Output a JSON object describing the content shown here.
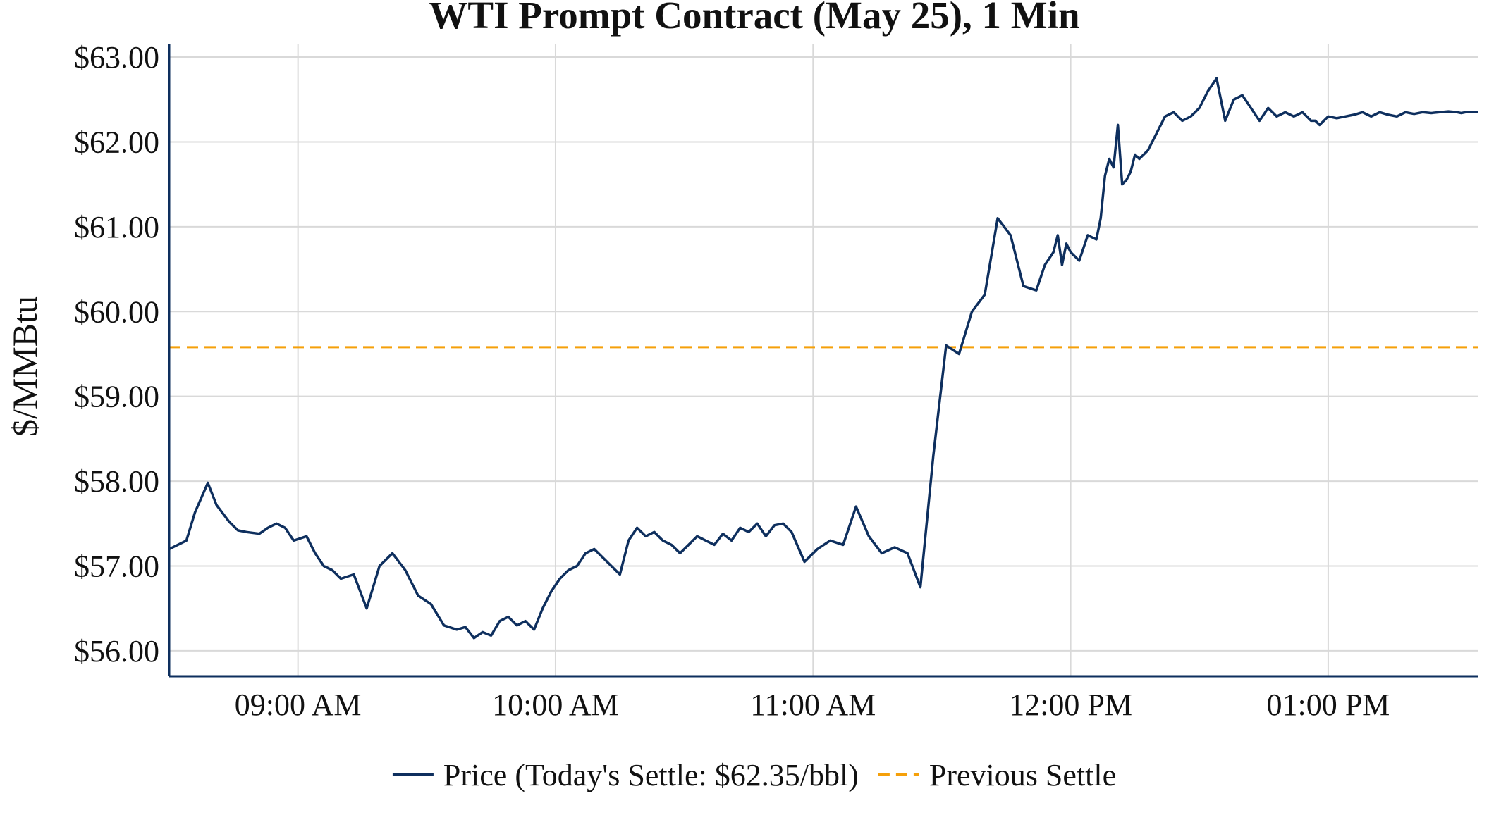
{
  "chart_data": {
    "type": "line",
    "title": "WTI Prompt Contract (May 25), 1 Min",
    "xlabel": "",
    "ylabel": "$/MMBtu",
    "ylim": [
      55.7,
      63.15
    ],
    "xlim_minutes_since_midnight": [
      510,
      815
    ],
    "y_ticks": [
      {
        "value": 56,
        "label": "$56.00"
      },
      {
        "value": 57,
        "label": "$57.00"
      },
      {
        "value": 58,
        "label": "$58.00"
      },
      {
        "value": 59,
        "label": "$59.00"
      },
      {
        "value": 60,
        "label": "$60.00"
      },
      {
        "value": 61,
        "label": "$61.00"
      },
      {
        "value": 62,
        "label": "$62.00"
      },
      {
        "value": 63,
        "label": "$63.00"
      }
    ],
    "x_ticks": [
      {
        "value": 540,
        "label": "09:00 AM"
      },
      {
        "value": 600,
        "label": "10:00 AM"
      },
      {
        "value": 660,
        "label": "11:00 AM"
      },
      {
        "value": 720,
        "label": "12:00 PM"
      },
      {
        "value": 780,
        "label": "01:00 PM"
      }
    ],
    "grid": true,
    "legend_position": "bottom-center",
    "series": [
      {
        "name": "Price (Today's Settle: $62.35/bbl)",
        "color": "#0e2f5e",
        "style": "solid",
        "x": [
          510,
          514,
          516,
          519,
          521,
          524,
          526,
          528,
          531,
          533,
          535,
          537,
          539,
          542,
          544,
          546,
          548,
          550,
          553,
          556,
          559,
          562,
          565,
          568,
          571,
          574,
          577,
          579,
          581,
          583,
          585,
          587,
          589,
          591,
          593,
          595,
          597,
          599,
          601,
          603,
          605,
          607,
          609,
          611,
          613,
          615,
          617,
          619,
          621,
          623,
          625,
          627,
          629,
          631,
          633,
          635,
          637,
          639,
          641,
          643,
          645,
          647,
          649,
          651,
          653,
          655,
          658,
          661,
          664,
          667,
          670,
          673,
          676,
          679,
          682,
          685,
          688,
          691,
          694,
          697,
          700,
          703,
          706,
          709,
          712,
          714,
          716,
          717,
          718,
          719,
          720,
          722,
          724,
          726,
          727,
          728,
          729,
          730,
          731,
          732,
          733,
          734,
          735,
          736,
          738,
          740,
          742,
          744,
          746,
          748,
          750,
          752,
          754,
          756,
          758,
          760,
          762,
          764,
          766,
          768,
          770,
          772,
          774,
          776,
          777,
          778,
          779,
          780,
          782,
          784,
          786,
          788,
          790,
          792,
          794,
          796,
          798,
          800,
          802,
          804,
          806,
          808,
          810,
          811,
          812,
          813,
          815
        ],
        "y": [
          57.2,
          57.3,
          57.63,
          57.98,
          57.72,
          57.52,
          57.42,
          57.4,
          57.38,
          57.45,
          57.5,
          57.45,
          57.3,
          57.35,
          57.15,
          57.0,
          56.95,
          56.85,
          56.9,
          56.5,
          57.0,
          57.15,
          56.95,
          56.65,
          56.55,
          56.3,
          56.25,
          56.28,
          56.15,
          56.22,
          56.18,
          56.35,
          56.4,
          56.3,
          56.35,
          56.25,
          56.5,
          56.7,
          56.85,
          56.95,
          57.0,
          57.15,
          57.2,
          57.1,
          57.0,
          56.9,
          57.3,
          57.45,
          57.35,
          57.4,
          57.3,
          57.25,
          57.15,
          57.25,
          57.35,
          57.3,
          57.25,
          57.38,
          57.3,
          57.45,
          57.4,
          57.5,
          57.35,
          57.48,
          57.5,
          57.4,
          57.05,
          57.2,
          57.3,
          57.25,
          57.7,
          57.35,
          57.15,
          57.22,
          57.15,
          56.75,
          58.3,
          59.6,
          59.5,
          60.0,
          60.2,
          61.1,
          60.9,
          60.3,
          60.25,
          60.55,
          60.7,
          60.9,
          60.55,
          60.8,
          60.7,
          60.6,
          60.9,
          60.85,
          61.1,
          61.6,
          61.8,
          61.7,
          62.2,
          61.5,
          61.55,
          61.65,
          61.85,
          61.8,
          61.9,
          62.1,
          62.3,
          62.35,
          62.25,
          62.3,
          62.4,
          62.6,
          62.75,
          62.25,
          62.5,
          62.55,
          62.4,
          62.25,
          62.4,
          62.3,
          62.35,
          62.3,
          62.35,
          62.25,
          62.25,
          62.2,
          62.25,
          62.3,
          62.28,
          62.3,
          62.32,
          62.35,
          62.3,
          62.35,
          62.32,
          62.3,
          62.35,
          62.33,
          62.35,
          62.34,
          62.35,
          62.36,
          62.35,
          62.34,
          62.35,
          62.35,
          62.35
        ]
      },
      {
        "name": "Previous Settle",
        "color": "#f5a00a",
        "style": "dashed",
        "y_constant": 59.58
      }
    ]
  }
}
